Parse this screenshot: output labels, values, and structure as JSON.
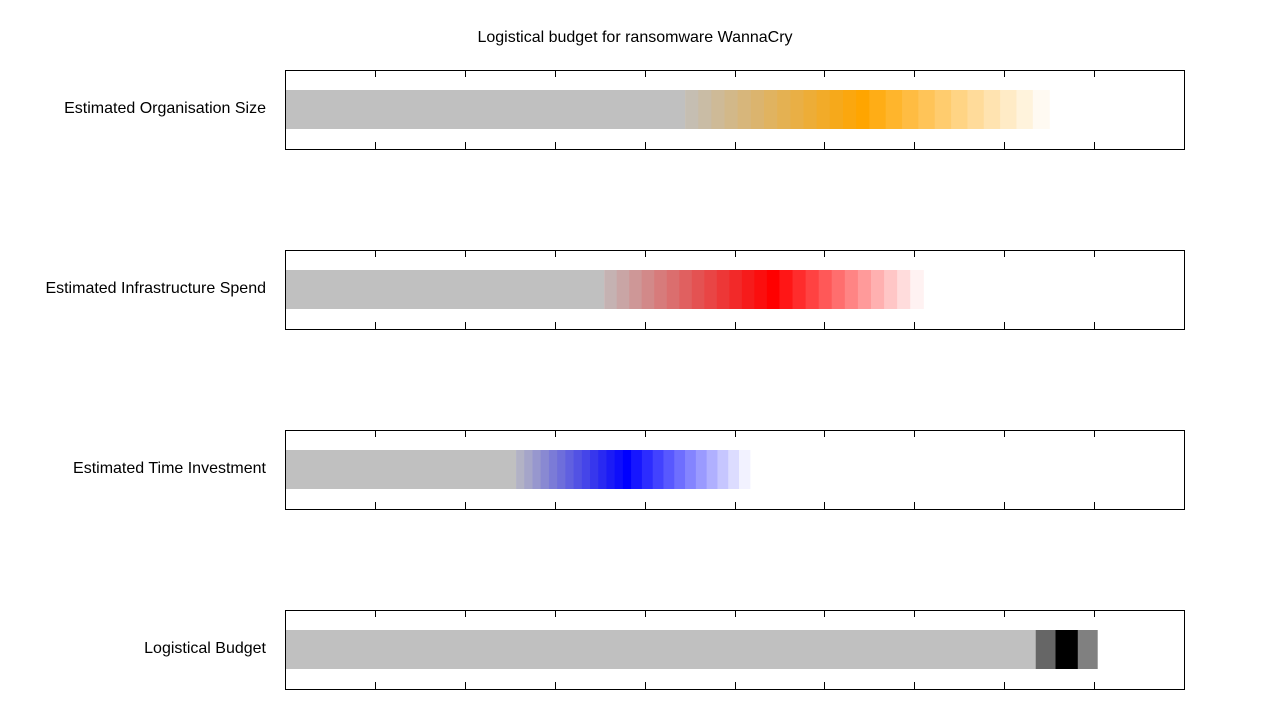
{
  "chart_data": {
    "type": "bar",
    "title": "Logistical budget for ransomware WannaCry",
    "xlim": [
      0,
      10
    ],
    "ticks": [
      1,
      2,
      3,
      4,
      5,
      6,
      7,
      8,
      9
    ],
    "rows": [
      {
        "label": "Estimated Organisation Size",
        "base": 4.45,
        "peak_color": "#ffa500",
        "peak_center": 6.5,
        "spread_left": [
          4.45,
          6.5
        ],
        "spread_right": [
          6.5,
          8.5
        ]
      },
      {
        "label": "Estimated Infrastructure Spend",
        "base": 3.55,
        "peak_color": "#ff0000",
        "peak_center": 5.5,
        "spread_left": [
          3.55,
          5.5
        ],
        "spread_right": [
          5.5,
          7.1
        ]
      },
      {
        "label": "Estimated Time Investment",
        "base": 2.57,
        "peak_color": "#0000ff",
        "peak_center": 3.85,
        "spread_left": [
          2.57,
          3.85
        ],
        "spread_right": [
          3.85,
          5.17
        ]
      },
      {
        "label": "Logistical Budget",
        "base": 8.35,
        "segments": [
          {
            "from": 8.35,
            "to": 8.57,
            "color": "#666666"
          },
          {
            "from": 8.57,
            "to": 8.82,
            "color": "#000000"
          },
          {
            "from": 8.82,
            "to": 9.04,
            "color": "#808080"
          }
        ]
      }
    ],
    "colors": {
      "base": "#c0c0c0",
      "frame": "#000000"
    }
  }
}
